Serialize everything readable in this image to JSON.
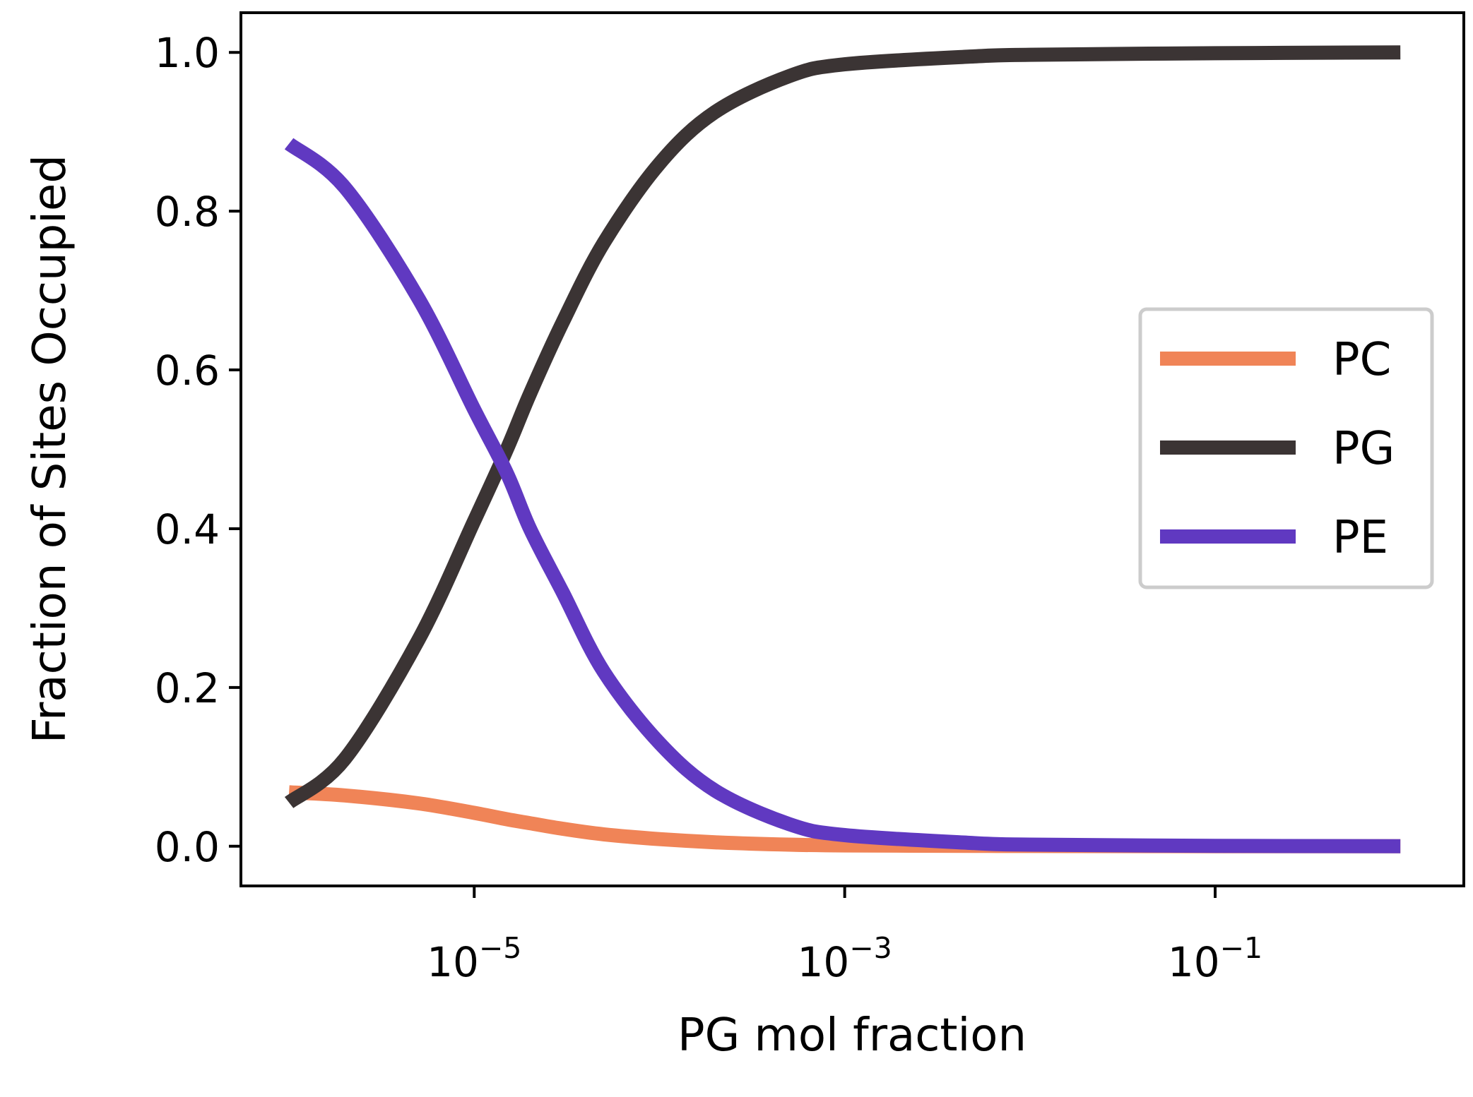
{
  "chart_data": {
    "type": "line",
    "xlabel": "PG mol fraction",
    "ylabel": "Fraction of Sites Occupied",
    "xscale": "log",
    "xlim": [
      5.5e-07,
      2.2
    ],
    "ylim": [
      -0.05,
      1.05
    ],
    "grid": false,
    "legend_position": "center-right",
    "x_ticks": [
      {
        "base": "10",
        "exponent": "−5",
        "value": 1e-05
      },
      {
        "base": "10",
        "exponent": "−3",
        "value": 0.001
      },
      {
        "base": "10",
        "exponent": "−1",
        "value": 0.1
      }
    ],
    "y_ticks": [
      {
        "label": "0.0",
        "value": 0.0
      },
      {
        "label": "0.2",
        "value": 0.2
      },
      {
        "label": "0.4",
        "value": 0.4
      },
      {
        "label": "0.6",
        "value": 0.6
      },
      {
        "label": "0.8",
        "value": 0.8
      },
      {
        "label": "1.0",
        "value": 1.0
      }
    ],
    "x": [
      1e-06,
      2e-06,
      5e-06,
      1e-05,
      1.5e-05,
      2e-05,
      3e-05,
      5e-05,
      0.0001,
      0.0002,
      0.0005,
      0.001,
      0.005,
      0.01,
      0.1,
      1.0
    ],
    "series": [
      {
        "name": "PC",
        "color": "#f08457",
        "values": [
          0.068,
          0.064,
          0.054,
          0.042,
          0.034,
          0.029,
          0.022,
          0.015,
          0.009,
          0.005,
          0.002,
          0.001,
          0.0005,
          0.0003,
          0.0001,
          0.0
        ]
      },
      {
        "name": "PG",
        "color": "#3b3434",
        "values": [
          0.055,
          0.11,
          0.26,
          0.41,
          0.5,
          0.57,
          0.66,
          0.76,
          0.86,
          0.925,
          0.97,
          0.985,
          0.995,
          0.997,
          0.999,
          1.0
        ]
      },
      {
        "name": "PE",
        "color": "#6039c1",
        "values": [
          0.885,
          0.83,
          0.69,
          0.55,
          0.47,
          0.4,
          0.32,
          0.22,
          0.13,
          0.07,
          0.028,
          0.014,
          0.004,
          0.002,
          0.0005,
          0.0
        ]
      }
    ]
  }
}
